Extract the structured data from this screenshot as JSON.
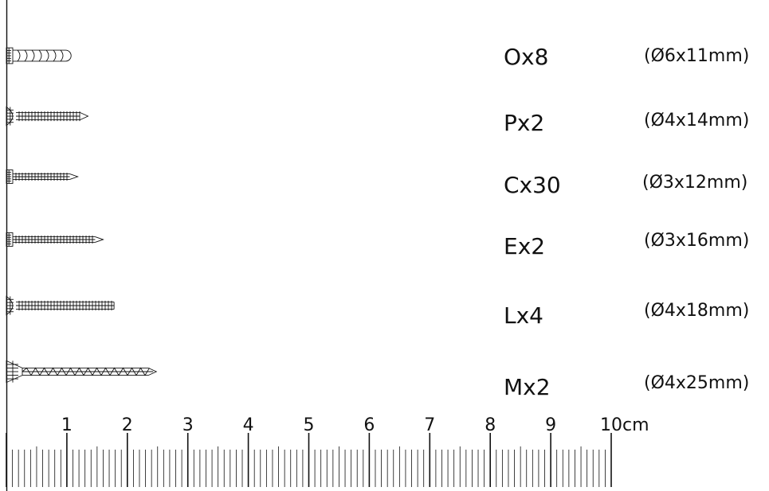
{
  "screws": [
    {
      "code": "Ox8",
      "size": "(Ø6x11mm)",
      "head": "round",
      "length_cm": 1.07,
      "diameter_mm": 6
    },
    {
      "code": "Px2",
      "size": "(Ø4x14mm)",
      "head": "pan",
      "length_cm": 1.35,
      "diameter_mm": 4
    },
    {
      "code": "Cx30",
      "size": "(Ø3x12mm)",
      "head": "flat",
      "length_cm": 1.18,
      "diameter_mm": 3
    },
    {
      "code": "Ex2",
      "size": "(Ø3x16mm)",
      "head": "flat",
      "length_cm": 1.6,
      "diameter_mm": 3
    },
    {
      "code": "Lx4",
      "size": "(Ø4x18mm)",
      "head": "pan",
      "length_cm": 1.78,
      "diameter_mm": 4
    },
    {
      "code": "Mx2",
      "size": "(Ø4x25mm)",
      "head": "countersunk",
      "length_cm": 2.48,
      "diameter_mm": 4
    }
  ],
  "ruler": {
    "labels": [
      "1",
      "2",
      "3",
      "4",
      "5",
      "6",
      "7",
      "8",
      "9",
      "10cm"
    ],
    "max_cm": 10,
    "subdivisions_per_cm": 10
  }
}
